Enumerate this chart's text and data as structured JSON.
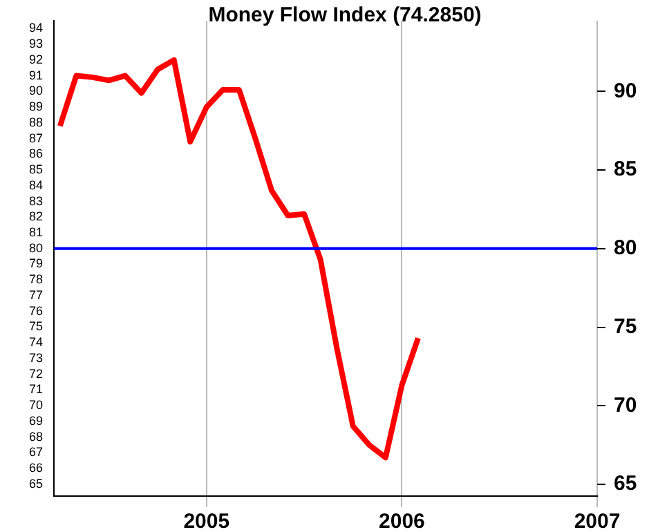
{
  "chart_data": {
    "type": "line",
    "title": "Money Flow Index (74.2850)",
    "x": [
      "2004-04",
      "2004-05",
      "2004-06",
      "2004-07",
      "2004-08",
      "2004-09",
      "2004-10",
      "2004-11",
      "2004-12",
      "2005-01",
      "2005-02",
      "2005-03",
      "2005-04",
      "2005-05",
      "2005-06",
      "2005-07",
      "2005-08",
      "2005-09",
      "2005-10",
      "2005-11",
      "2005-12",
      "2006-01",
      "2006-02"
    ],
    "series": [
      {
        "color": "#ff0000",
        "values": [
          87.8,
          91.0,
          90.9,
          90.7,
          91.0,
          89.9,
          91.4,
          92.0,
          86.8,
          89.0,
          90.1,
          90.1,
          87.0,
          83.7,
          82.1,
          82.2,
          79.3,
          73.7,
          68.7,
          67.5,
          66.7,
          71.3,
          74.3
        ]
      }
    ],
    "xlim": [
      "2004-03-20",
      "2007-01-01"
    ],
    "xticks": [
      "2005",
      "2006",
      "2007"
    ],
    "ylim": [
      64.25,
      94.5
    ],
    "yticks": [
      65,
      66,
      67,
      68,
      69,
      70,
      71,
      72,
      73,
      74,
      75,
      76,
      77,
      78,
      79,
      80,
      81,
      82,
      83,
      84,
      85,
      86,
      87,
      88,
      89,
      90,
      91,
      92,
      93,
      94
    ],
    "y2lim": [
      64.25,
      94.5
    ],
    "y2ticks": [
      65,
      70,
      75,
      80,
      85,
      90
    ],
    "ref_lines": [
      {
        "axis": "y",
        "value": 80,
        "color": "#0000ff"
      }
    ],
    "grid": "x",
    "legend": false,
    "marker": "none",
    "line_style": "solid"
  }
}
